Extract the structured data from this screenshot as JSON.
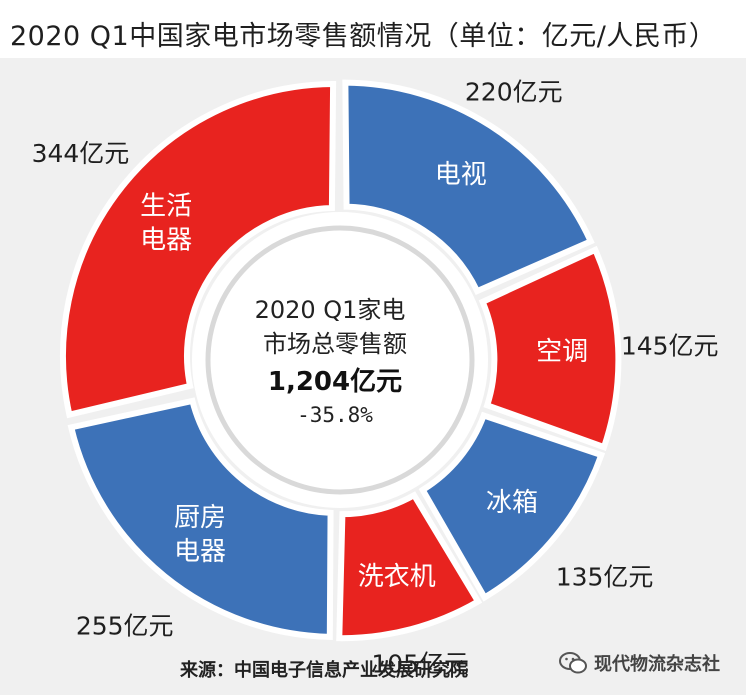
{
  "title": "2020 Q1中国家电市场零售额情况（单位：亿元/人民币）",
  "chart_data": {
    "type": "pie",
    "title": "2020 Q1中国家电市场零售额情况（单位：亿元/人民币）",
    "center": {
      "line1": "2020 Q1家电",
      "line2": "市场总零售额",
      "total": "1,204亿元",
      "change": "-35.8%"
    },
    "slices": [
      {
        "name": [
          "电视"
        ],
        "value": 220,
        "label": "220亿元",
        "color": "#3d72b8"
      },
      {
        "name": [
          "空调"
        ],
        "value": 145,
        "label": "145亿元",
        "color": "#e8231f"
      },
      {
        "name": [
          "冰箱"
        ],
        "value": 135,
        "label": "135亿元",
        "color": "#3d72b8"
      },
      {
        "name": [
          "洗衣机"
        ],
        "value": 105,
        "label": "105亿元",
        "color": "#e8231f"
      },
      {
        "name": [
          "厨房",
          "电器"
        ],
        "value": 255,
        "label": "255亿元",
        "color": "#3d72b8"
      },
      {
        "name": [
          "生活",
          "电器"
        ],
        "value": 344,
        "label": "344亿元",
        "color": "#e8231f"
      }
    ]
  },
  "source": "来源：中国电子信息产业发展研究院",
  "watermark": "现代物流杂志社",
  "colors": {
    "blue": "#3d72b8",
    "red": "#e8231f"
  }
}
